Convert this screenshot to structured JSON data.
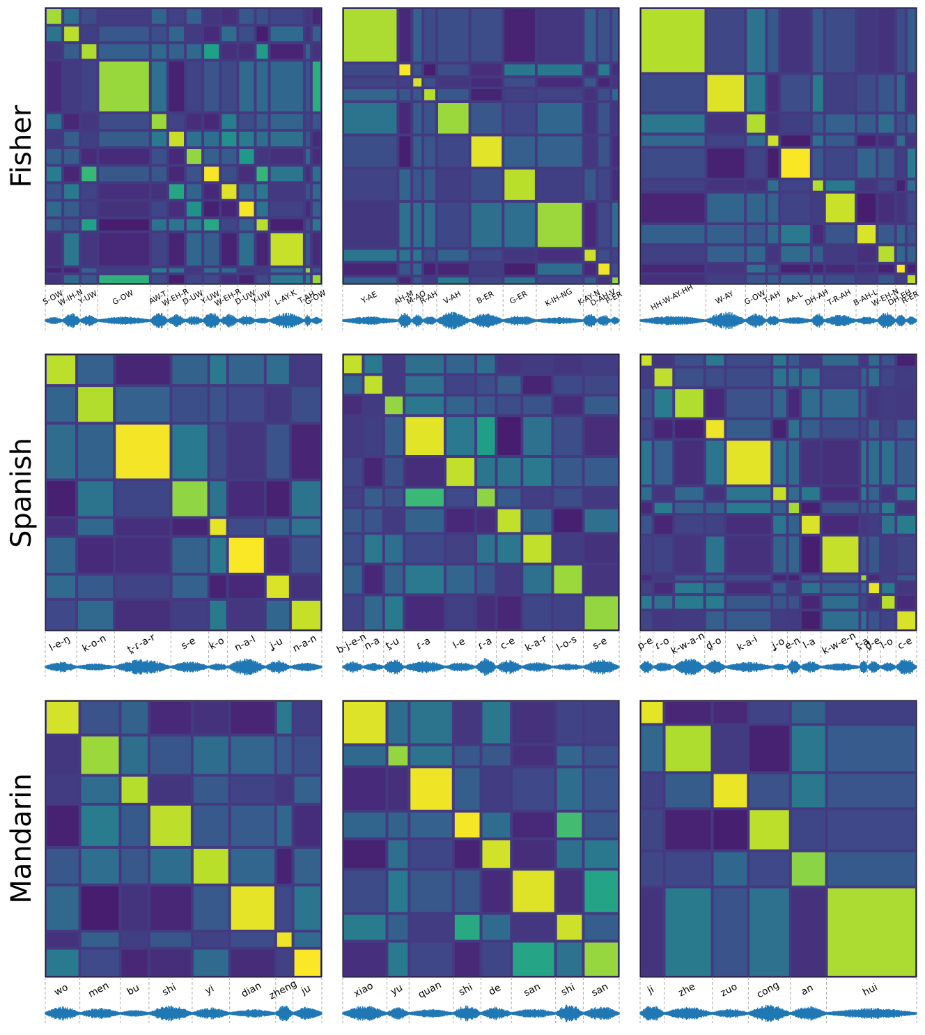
{
  "chart_data": {
    "type": "heatmap",
    "colormap": "viridis",
    "value_range": [
      0,
      1
    ],
    "rows": [
      "Fisher",
      "Spanish",
      "Mandarin"
    ],
    "panels": [
      {
        "row": "Fisher",
        "segments": [
          "S-OW",
          "W-IH-N",
          "Y-UW",
          "G-OW",
          "AW-T",
          "W-EH-R",
          "D-UW",
          "Y-UW",
          "W-EH-R",
          "D-UW",
          "Y-UW",
          "L-AY-K",
          "T-AH",
          "G-OW"
        ],
        "widths": [
          0.5,
          0.5,
          0.5,
          1.5,
          0.5,
          0.5,
          0.5,
          0.5,
          0.5,
          0.5,
          0.4,
          1,
          0.2,
          0.3
        ]
      },
      {
        "row": "Fisher",
        "segments": [
          "Y-AE",
          "AH-M",
          "M-AO",
          "R-AH",
          "V-AH",
          "B-ER",
          "G-ER",
          "K-IH-NG",
          "K-AY-N",
          "D-AH-V",
          "P-ER"
        ],
        "widths": [
          2,
          0.5,
          0.4,
          0.5,
          1.2,
          1.2,
          1.2,
          1.7,
          0.5,
          0.5,
          0.3
        ]
      },
      {
        "row": "Fisher",
        "segments": [
          "HH-W-AY-HH",
          "W-AY",
          "G-OW",
          "T-AH",
          "AA-L",
          "DH-AH",
          "T-R-AH",
          "B-AH-L",
          "W-EH-N",
          "DH-EH",
          "R-ER"
        ],
        "widths": [
          2.5,
          1.5,
          0.8,
          0.5,
          1.2,
          0.5,
          1.2,
          0.8,
          0.7,
          0.4,
          0.4
        ]
      },
      {
        "row": "Spanish",
        "segments": [
          "l-e-ŋ",
          "k-o-n",
          "t̪-ɾ-a-r",
          "s-e",
          "k-o",
          "n-a-l",
          "ʝ-u",
          "n-a-n"
        ],
        "widths": [
          1,
          1.2,
          1.8,
          1.2,
          0.6,
          1.2,
          0.8,
          1
        ]
      },
      {
        "row": "Spanish",
        "segments": [
          "b-j-e-n",
          "n-a",
          "t̪-u",
          "ɾ-a",
          "l-e",
          "ɾ-a",
          "c-e",
          "k-a-r",
          "l-o-s",
          "s-e"
        ],
        "widths": [
          0.8,
          0.8,
          0.8,
          1.6,
          1.2,
          0.8,
          1,
          1.2,
          1.2,
          1.4
        ]
      },
      {
        "row": "Spanish",
        "segments": [
          "p-e",
          "ɾ-o",
          "k-w-a-n",
          "d̪-o",
          "k-a-i",
          "ʝ-o",
          "e-n",
          "l-a",
          "k-w-e-n",
          "t̪-a",
          "d̪-e",
          "l-o",
          "c-e"
        ],
        "widths": [
          0.5,
          0.8,
          1.2,
          0.8,
          1.8,
          0.6,
          0.5,
          0.8,
          1.5,
          0.3,
          0.5,
          0.6,
          0.8
        ]
      },
      {
        "row": "Mandarin",
        "segments": [
          "wo",
          "men",
          "bu",
          "shi",
          "yi",
          "dian",
          "zheng",
          "ju"
        ],
        "widths": [
          1.2,
          1.4,
          1,
          1.5,
          1.3,
          1.6,
          0.6,
          1
        ]
      },
      {
        "row": "Mandarin",
        "segments": [
          "xiao",
          "yu",
          "quan",
          "shi",
          "de",
          "san",
          "shi",
          "san"
        ],
        "widths": [
          1.6,
          0.8,
          1.6,
          1,
          1.1,
          1.6,
          1,
          1.3
        ]
      },
      {
        "row": "Mandarin",
        "segments": [
          "ji",
          "zhe",
          "zuo",
          "cong",
          "an",
          "hui"
        ],
        "widths": [
          0.8,
          1.6,
          1.2,
          1.4,
          1.2,
          3
        ]
      }
    ]
  }
}
